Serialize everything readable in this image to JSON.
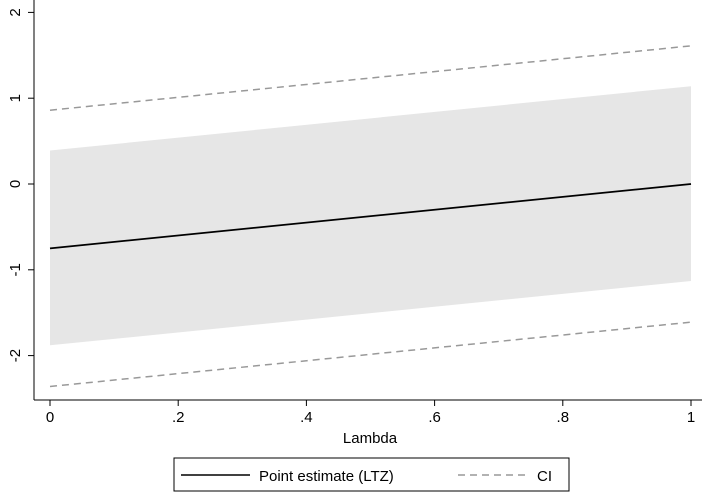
{
  "chart_data": {
    "type": "line",
    "xlabel": "Lambda",
    "ylabel": "",
    "xlim": [
      0,
      1
    ],
    "ylim": [
      -2.5,
      2.1
    ],
    "x_ticks": [
      0,
      0.2,
      0.4,
      0.6,
      0.8,
      1
    ],
    "x_tick_labels": [
      "0",
      ".2",
      ".4",
      ".6",
      ".8",
      "1"
    ],
    "y_ticks": [
      -2,
      -1,
      0,
      1,
      2
    ],
    "y_tick_labels": [
      "-2",
      "-1",
      "0",
      "1",
      "2"
    ],
    "grid": false,
    "legend_position": "bottom",
    "shaded_band": {
      "x": [
        0,
        1
      ],
      "lower": [
        -1.88,
        -1.13
      ],
      "upper": [
        0.39,
        1.14
      ],
      "color": "#e6e6e6"
    },
    "series": [
      {
        "name": "Point estimate (LTZ)",
        "style": "solid",
        "color": "#000000",
        "x": [
          0,
          1
        ],
        "y": [
          -0.75,
          0.0
        ]
      },
      {
        "name": "CI",
        "style": "dashed",
        "color": "#999999",
        "x": [
          0,
          1
        ],
        "y": [
          0.86,
          1.61
        ]
      },
      {
        "name": "",
        "style": "dashed",
        "color": "#999999",
        "x": [
          0,
          1
        ],
        "y": [
          -2.36,
          -1.61
        ]
      }
    ],
    "legend": [
      "Point estimate (LTZ)",
      "CI"
    ]
  }
}
